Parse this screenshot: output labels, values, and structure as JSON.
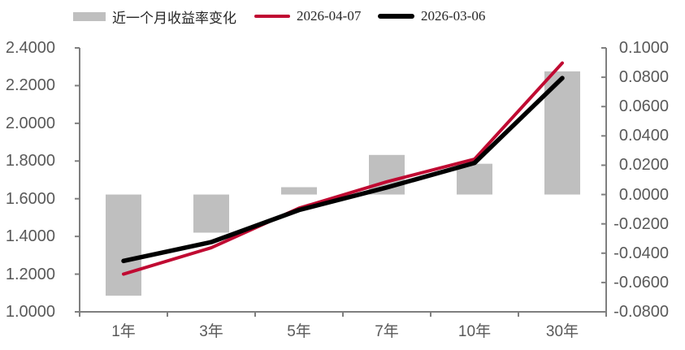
{
  "legend": {
    "items": [
      {
        "label": "近一个月收益率变化",
        "swatch": "bar",
        "color": "#bfbfbf"
      },
      {
        "label": "2026-04-07",
        "swatch": "line",
        "color": "#c00a32"
      },
      {
        "label": "2026-03-06",
        "swatch": "line",
        "color": "#000000"
      }
    ]
  },
  "colors": {
    "axis_line": "#7f7f7f",
    "tick_text": "#595959",
    "background": "#ffffff",
    "bar_fill": "#bfbfbf",
    "red_line": "#c00a32",
    "black_line": "#000000"
  },
  "chart_data": {
    "type": "bar+line combo",
    "title": "",
    "categories": [
      "1年",
      "3年",
      "5年",
      "7年",
      "10年",
      "30年"
    ],
    "series": [
      {
        "name": "近一个月收益率变化",
        "type": "bar",
        "axis": "right",
        "color": "#bfbfbf",
        "values": [
          -0.069,
          -0.026,
          0.005,
          0.027,
          0.021,
          0.084
        ]
      },
      {
        "name": "2026-04-07",
        "type": "line",
        "axis": "left",
        "color": "#c00a32",
        "values": [
          1.2,
          1.34,
          1.55,
          1.69,
          1.81,
          2.32
        ]
      },
      {
        "name": "2026-03-06",
        "type": "line",
        "axis": "left",
        "color": "#000000",
        "values": [
          1.27,
          1.37,
          1.54,
          1.66,
          1.79,
          2.24
        ]
      }
    ],
    "left_axis": {
      "min": 1.0,
      "max": 2.4,
      "step": 0.2,
      "tick_labels": [
        "2.4000",
        "2.2000",
        "2.0000",
        "1.8000",
        "1.6000",
        "1.4000",
        "1.2000",
        "1.0000"
      ]
    },
    "right_axis": {
      "min": -0.08,
      "max": 0.1,
      "step": 0.02,
      "tick_labels": [
        "0.1000",
        "0.0800",
        "0.0600",
        "0.0400",
        "0.0200",
        "0.0000",
        "-0.0200",
        "-0.0400",
        "-0.0600",
        "-0.0800"
      ]
    },
    "grid": false,
    "legend_position": "top"
  }
}
